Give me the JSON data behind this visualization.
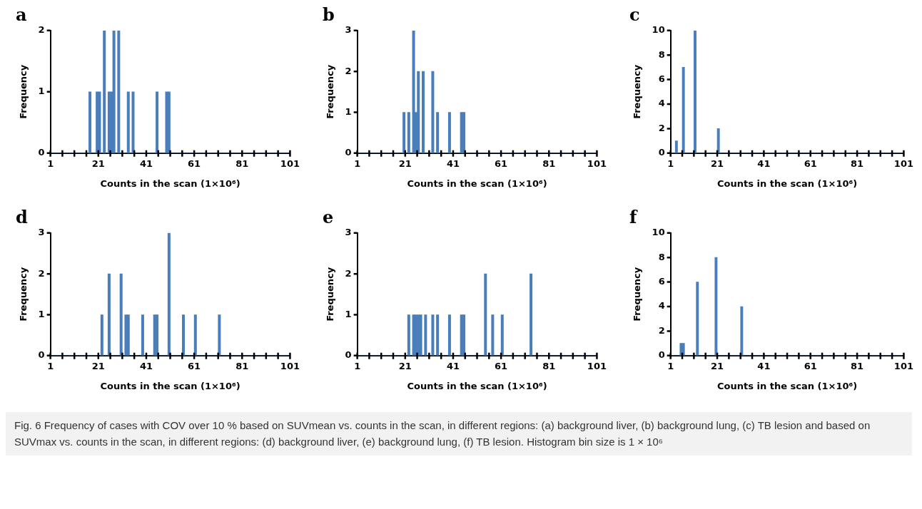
{
  "chart_data": [
    {
      "type": "histogram",
      "title": "a",
      "xlabel": "Counts in the scan (1×10⁶)",
      "ylabel": "Frequency",
      "color": "#4a7ebb",
      "bins": [
        1,
        2,
        3,
        4,
        5,
        6,
        7,
        8,
        9,
        10,
        11,
        12,
        13,
        14,
        15,
        16,
        17,
        18,
        19,
        20,
        21,
        22,
        23,
        24,
        25,
        26,
        27,
        28,
        29,
        30,
        31,
        32,
        33,
        34,
        35,
        36,
        37,
        38,
        39,
        40,
        41,
        42,
        43,
        44,
        45,
        46,
        47,
        48,
        49,
        50,
        51,
        52,
        53,
        54,
        55,
        56,
        57,
        58,
        59,
        60,
        61,
        62,
        63,
        64,
        65,
        66,
        67,
        68,
        69,
        70,
        71,
        72,
        73,
        74,
        75,
        76,
        77,
        78,
        79,
        80,
        81,
        82,
        83,
        84,
        85,
        86,
        87,
        88,
        89,
        90,
        91,
        92,
        93,
        94,
        95,
        96,
        97,
        98,
        99,
        100,
        101
      ],
      "values": [
        0,
        0,
        0,
        0,
        0,
        0,
        0,
        0,
        0,
        0,
        0,
        0,
        0,
        0,
        0,
        0,
        1,
        0,
        0,
        1,
        1,
        0,
        2,
        0,
        1,
        1,
        2,
        0,
        2,
        0,
        0,
        0,
        1,
        0,
        1,
        0,
        0,
        0,
        0,
        0,
        0,
        0,
        0,
        0,
        1,
        0,
        0,
        0,
        1,
        1,
        0,
        0,
        0,
        0,
        0,
        0,
        0,
        0,
        0,
        0,
        0,
        0,
        0,
        0,
        0,
        0,
        0,
        0,
        0,
        0,
        0,
        0,
        0,
        0,
        0,
        0,
        0,
        0,
        0,
        0,
        0,
        0,
        0,
        0,
        0,
        0,
        0,
        0,
        0,
        0,
        0,
        0,
        0,
        0,
        0,
        0,
        0,
        0,
        0,
        0
      ],
      "xlim": [
        1,
        101
      ],
      "xticks": [
        1,
        {
          "value": 6,
          "label": null
        },
        {
          "value": 11,
          "label": null
        },
        {
          "value": 16,
          "label": null
        },
        21,
        {
          "value": 26,
          "label": null
        },
        {
          "value": 31,
          "label": null
        },
        {
          "value": 36,
          "label": null
        },
        41,
        {
          "value": 46,
          "label": null
        },
        {
          "value": 51,
          "label": null
        },
        {
          "value": 56,
          "label": null
        },
        61,
        {
          "value": 66,
          "label": null
        },
        {
          "value": 71,
          "label": null
        },
        {
          "value": 76,
          "label": null
        },
        81,
        {
          "value": 86,
          "label": null
        },
        {
          "value": 91,
          "label": null
        },
        {
          "value": 96,
          "label": null
        },
        101
      ],
      "ylim": [
        0,
        2
      ],
      "yticks": [
        0,
        1,
        2
      ]
    },
    {
      "type": "histogram",
      "title": "b",
      "xlabel": "Counts in the scan (1×10⁶)",
      "ylabel": "Frequency",
      "color": "#4a7ebb",
      "bins": [
        1,
        2,
        3,
        4,
        5,
        6,
        7,
        8,
        9,
        10,
        11,
        12,
        13,
        14,
        15,
        16,
        17,
        18,
        19,
        20,
        21,
        22,
        23,
        24,
        25,
        26,
        27,
        28,
        29,
        30,
        31,
        32,
        33,
        34,
        35,
        36,
        37,
        38,
        39,
        40,
        41,
        42,
        43,
        44,
        45,
        46,
        47,
        48,
        49,
        50,
        51,
        52,
        53,
        54,
        55,
        56,
        57,
        58,
        59,
        60,
        61,
        62,
        63,
        64,
        65,
        66,
        67,
        68,
        69,
        70,
        71,
        72,
        73,
        74,
        75,
        76,
        77,
        78,
        79,
        80,
        81,
        82,
        83,
        84,
        85,
        86,
        87,
        88,
        89,
        90,
        91,
        92,
        93,
        94,
        95,
        96,
        97,
        98,
        99,
        100,
        101
      ],
      "values": [
        0,
        0,
        0,
        0,
        0,
        0,
        0,
        0,
        0,
        0,
        0,
        0,
        0,
        0,
        0,
        0,
        0,
        0,
        0,
        1,
        0,
        1,
        0,
        3,
        1,
        2,
        0,
        2,
        0,
        0,
        0,
        2,
        0,
        1,
        0,
        0,
        0,
        0,
        1,
        0,
        0,
        0,
        0,
        1,
        1,
        0,
        0,
        0,
        0,
        0,
        0,
        0,
        0,
        0,
        0,
        0,
        0,
        0,
        0,
        0,
        0,
        0,
        0,
        0,
        0,
        0,
        0,
        0,
        0,
        0,
        0,
        0,
        0,
        0,
        0,
        0,
        0,
        0,
        0,
        0,
        0,
        0,
        0,
        0,
        0,
        0,
        0,
        0,
        0,
        0,
        0,
        0,
        0,
        0,
        0,
        0,
        0,
        0,
        0,
        0
      ],
      "xlim": [
        1,
        101
      ],
      "xticks": [
        1,
        {
          "value": 6,
          "label": null
        },
        {
          "value": 11,
          "label": null
        },
        {
          "value": 16,
          "label": null
        },
        21,
        {
          "value": 26,
          "label": null
        },
        {
          "value": 31,
          "label": null
        },
        {
          "value": 36,
          "label": null
        },
        41,
        {
          "value": 46,
          "label": null
        },
        {
          "value": 51,
          "label": null
        },
        {
          "value": 56,
          "label": null
        },
        61,
        {
          "value": 66,
          "label": null
        },
        {
          "value": 71,
          "label": null
        },
        {
          "value": 76,
          "label": null
        },
        81,
        {
          "value": 86,
          "label": null
        },
        {
          "value": 91,
          "label": null
        },
        {
          "value": 96,
          "label": null
        },
        101
      ],
      "ylim": [
        0,
        3
      ],
      "yticks": [
        0,
        1,
        2,
        3
      ]
    },
    {
      "type": "histogram",
      "title": "c",
      "xlabel": "Counts in the scan (1×10⁶)",
      "ylabel": "Frequency",
      "color": "#4a7ebb",
      "bins": [
        1,
        2,
        3,
        4,
        5,
        6,
        7,
        8,
        9,
        10,
        11,
        12,
        13,
        14,
        15,
        16,
        17,
        18,
        19,
        20,
        21,
        22,
        23,
        24,
        25,
        26,
        27,
        28,
        29,
        30,
        31,
        32,
        33,
        34,
        35,
        36,
        37,
        38,
        39,
        40,
        41,
        42,
        43,
        44,
        45,
        46,
        47,
        48,
        49,
        50,
        51,
        52,
        53,
        54,
        55,
        56,
        57,
        58,
        59,
        60,
        61,
        62,
        63,
        64,
        65,
        66,
        67,
        68,
        69,
        70,
        71,
        72,
        73,
        74,
        75,
        76,
        77,
        78,
        79,
        80,
        81,
        82,
        83,
        84,
        85,
        86,
        87,
        88,
        89,
        90,
        91,
        92,
        93,
        94,
        95,
        96,
        97,
        98,
        99,
        100,
        101
      ],
      "values": [
        0,
        0,
        1,
        0,
        0,
        7,
        0,
        0,
        0,
        0,
        10,
        0,
        0,
        0,
        0,
        0,
        0,
        0,
        0,
        0,
        2,
        0,
        0,
        0,
        0,
        0,
        0,
        0,
        0,
        0,
        0,
        0,
        0,
        0,
        0,
        0,
        0,
        0,
        0,
        0,
        0,
        0,
        0,
        0,
        0,
        0,
        0,
        0,
        0,
        0,
        0,
        0,
        0,
        0,
        0,
        0,
        0,
        0,
        0,
        0,
        0,
        0,
        0,
        0,
        0,
        0,
        0,
        0,
        0,
        0,
        0,
        0,
        0,
        0,
        0,
        0,
        0,
        0,
        0,
        0,
        0,
        0,
        0,
        0,
        0,
        0,
        0,
        0,
        0,
        0,
        0,
        0,
        0,
        0,
        0,
        0,
        0,
        0,
        0,
        0
      ],
      "xlim": [
        1,
        101
      ],
      "xticks": [
        1,
        {
          "value": 6,
          "label": null
        },
        {
          "value": 11,
          "label": null
        },
        {
          "value": 16,
          "label": null
        },
        21,
        {
          "value": 26,
          "label": null
        },
        {
          "value": 31,
          "label": null
        },
        {
          "value": 36,
          "label": null
        },
        41,
        {
          "value": 46,
          "label": null
        },
        {
          "value": 51,
          "label": null
        },
        {
          "value": 56,
          "label": null
        },
        61,
        {
          "value": 66,
          "label": null
        },
        {
          "value": 71,
          "label": null
        },
        {
          "value": 76,
          "label": null
        },
        81,
        {
          "value": 86,
          "label": null
        },
        {
          "value": 91,
          "label": null
        },
        {
          "value": 96,
          "label": null
        },
        101
      ],
      "ylim": [
        0,
        10
      ],
      "yticks": [
        0,
        2,
        4,
        6,
        8,
        10
      ]
    },
    {
      "type": "histogram",
      "title": "d",
      "xlabel": "Counts in the scan (1×10⁶)",
      "ylabel": "Frequency",
      "color": "#4a7ebb",
      "bins": [
        1,
        2,
        3,
        4,
        5,
        6,
        7,
        8,
        9,
        10,
        11,
        12,
        13,
        14,
        15,
        16,
        17,
        18,
        19,
        20,
        21,
        22,
        23,
        24,
        25,
        26,
        27,
        28,
        29,
        30,
        31,
        32,
        33,
        34,
        35,
        36,
        37,
        38,
        39,
        40,
        41,
        42,
        43,
        44,
        45,
        46,
        47,
        48,
        49,
        50,
        51,
        52,
        53,
        54,
        55,
        56,
        57,
        58,
        59,
        60,
        61,
        62,
        63,
        64,
        65,
        66,
        67,
        68,
        69,
        70,
        71,
        72,
        73,
        74,
        75,
        76,
        77,
        78,
        79,
        80,
        81,
        82,
        83,
        84,
        85,
        86,
        87,
        88,
        89,
        90,
        91,
        92,
        93,
        94,
        95,
        96,
        97,
        98,
        99,
        100,
        101
      ],
      "values": [
        0,
        0,
        0,
        0,
        0,
        0,
        0,
        0,
        0,
        0,
        0,
        0,
        0,
        0,
        0,
        0,
        0,
        0,
        0,
        0,
        0,
        1,
        0,
        0,
        2,
        0,
        0,
        0,
        0,
        2,
        0,
        1,
        1,
        0,
        0,
        0,
        0,
        0,
        1,
        0,
        0,
        0,
        0,
        1,
        1,
        0,
        0,
        0,
        0,
        3,
        0,
        0,
        0,
        0,
        0,
        1,
        0,
        0,
        0,
        0,
        1,
        0,
        0,
        0,
        0,
        0,
        0,
        0,
        0,
        0,
        1,
        0,
        0,
        0,
        0,
        0,
        0,
        0,
        0,
        0,
        0,
        0,
        0,
        0,
        0,
        0,
        0,
        0,
        0,
        0,
        0,
        0,
        0,
        0,
        0,
        0,
        0,
        0,
        0,
        0
      ],
      "xlim": [
        1,
        101
      ],
      "xticks": [
        1,
        {
          "value": 6,
          "label": null
        },
        {
          "value": 11,
          "label": null
        },
        {
          "value": 16,
          "label": null
        },
        21,
        {
          "value": 26,
          "label": null
        },
        {
          "value": 31,
          "label": null
        },
        {
          "value": 36,
          "label": null
        },
        41,
        {
          "value": 46,
          "label": null
        },
        {
          "value": 51,
          "label": null
        },
        {
          "value": 56,
          "label": null
        },
        61,
        {
          "value": 66,
          "label": null
        },
        {
          "value": 71,
          "label": null
        },
        {
          "value": 76,
          "label": null
        },
        81,
        {
          "value": 86,
          "label": null
        },
        {
          "value": 91,
          "label": null
        },
        {
          "value": 96,
          "label": null
        },
        101
      ],
      "ylim": [
        0,
        3
      ],
      "yticks": [
        0,
        1,
        2,
        3
      ]
    },
    {
      "type": "histogram",
      "title": "e",
      "xlabel": "Counts in the scan (1×10⁶)",
      "ylabel": "Frequency",
      "color": "#4a7ebb",
      "bins": [
        1,
        2,
        3,
        4,
        5,
        6,
        7,
        8,
        9,
        10,
        11,
        12,
        13,
        14,
        15,
        16,
        17,
        18,
        19,
        20,
        21,
        22,
        23,
        24,
        25,
        26,
        27,
        28,
        29,
        30,
        31,
        32,
        33,
        34,
        35,
        36,
        37,
        38,
        39,
        40,
        41,
        42,
        43,
        44,
        45,
        46,
        47,
        48,
        49,
        50,
        51,
        52,
        53,
        54,
        55,
        56,
        57,
        58,
        59,
        60,
        61,
        62,
        63,
        64,
        65,
        66,
        67,
        68,
        69,
        70,
        71,
        72,
        73,
        74,
        75,
        76,
        77,
        78,
        79,
        80,
        81,
        82,
        83,
        84,
        85,
        86,
        87,
        88,
        89,
        90,
        91,
        92,
        93,
        94,
        95,
        96,
        97,
        98,
        99,
        100,
        101
      ],
      "values": [
        0,
        0,
        0,
        0,
        0,
        0,
        0,
        0,
        0,
        0,
        0,
        0,
        0,
        0,
        0,
        0,
        0,
        0,
        0,
        0,
        0,
        1,
        0,
        1,
        1,
        1,
        1,
        0,
        1,
        0,
        0,
        1,
        0,
        1,
        0,
        0,
        0,
        0,
        1,
        0,
        0,
        0,
        0,
        1,
        1,
        0,
        0,
        0,
        0,
        0,
        0,
        0,
        0,
        2,
        0,
        0,
        1,
        0,
        0,
        0,
        1,
        0,
        0,
        0,
        0,
        0,
        0,
        0,
        0,
        0,
        0,
        0,
        2,
        0,
        0,
        0,
        0,
        0,
        0,
        0,
        0,
        0,
        0,
        0,
        0,
        0,
        0,
        0,
        0,
        0,
        0,
        0,
        0,
        0,
        0,
        0,
        0,
        0,
        0,
        0
      ],
      "xlim": [
        1,
        101
      ],
      "xticks": [
        1,
        {
          "value": 6,
          "label": null
        },
        {
          "value": 11,
          "label": null
        },
        {
          "value": 16,
          "label": null
        },
        21,
        {
          "value": 26,
          "label": null
        },
        {
          "value": 31,
          "label": null
        },
        {
          "value": 36,
          "label": null
        },
        41,
        {
          "value": 46,
          "label": null
        },
        {
          "value": 51,
          "label": null
        },
        {
          "value": 56,
          "label": null
        },
        61,
        {
          "value": 66,
          "label": null
        },
        {
          "value": 71,
          "label": null
        },
        {
          "value": 76,
          "label": null
        },
        81,
        {
          "value": 86,
          "label": null
        },
        {
          "value": 91,
          "label": null
        },
        {
          "value": 96,
          "label": null
        },
        101
      ],
      "ylim": [
        0,
        3
      ],
      "yticks": [
        0,
        1,
        2,
        3
      ]
    },
    {
      "type": "histogram",
      "title": "f",
      "xlabel": "Counts in the scan (1×10⁶)",
      "ylabel": "Frequency",
      "color": "#4a7ebb",
      "bins": [
        1,
        2,
        3,
        4,
        5,
        6,
        7,
        8,
        9,
        10,
        11,
        12,
        13,
        14,
        15,
        16,
        17,
        18,
        19,
        20,
        21,
        22,
        23,
        24,
        25,
        26,
        27,
        28,
        29,
        30,
        31,
        32,
        33,
        34,
        35,
        36,
        37,
        38,
        39,
        40,
        41,
        42,
        43,
        44,
        45,
        46,
        47,
        48,
        49,
        50,
        51,
        52,
        53,
        54,
        55,
        56,
        57,
        58,
        59,
        60,
        61,
        62,
        63,
        64,
        65,
        66,
        67,
        68,
        69,
        70,
        71,
        72,
        73,
        74,
        75,
        76,
        77,
        78,
        79,
        80,
        81,
        82,
        83,
        84,
        85,
        86,
        87,
        88,
        89,
        90,
        91,
        92,
        93,
        94,
        95,
        96,
        97,
        98,
        99,
        100,
        101
      ],
      "values": [
        0,
        0,
        0,
        0,
        1,
        1,
        0,
        0,
        0,
        0,
        0,
        6,
        0,
        0,
        0,
        0,
        0,
        0,
        0,
        8,
        0,
        0,
        0,
        0,
        0,
        0,
        0,
        0,
        0,
        0,
        4,
        0,
        0,
        0,
        0,
        0,
        0,
        0,
        0,
        0,
        0,
        0,
        0,
        0,
        0,
        0,
        0,
        0,
        0,
        0,
        0,
        0,
        0,
        0,
        0,
        0,
        0,
        0,
        0,
        0,
        0,
        0,
        0,
        0,
        0,
        0,
        0,
        0,
        0,
        0,
        0,
        0,
        0,
        0,
        0,
        0,
        0,
        0,
        0,
        0,
        0,
        0,
        0,
        0,
        0,
        0,
        0,
        0,
        0,
        0,
        0,
        0,
        0,
        0,
        0,
        0,
        0,
        0,
        0,
        0
      ],
      "xlim": [
        1,
        101
      ],
      "xticks": [
        1,
        {
          "value": 6,
          "label": null
        },
        {
          "value": 11,
          "label": null
        },
        {
          "value": 16,
          "label": null
        },
        21,
        {
          "value": 26,
          "label": null
        },
        {
          "value": 31,
          "label": null
        },
        {
          "value": 36,
          "label": null
        },
        41,
        {
          "value": 46,
          "label": null
        },
        {
          "value": 51,
          "label": null
        },
        {
          "value": 56,
          "label": null
        },
        61,
        {
          "value": 66,
          "label": null
        },
        {
          "value": 71,
          "label": null
        },
        {
          "value": 76,
          "label": null
        },
        81,
        {
          "value": 86,
          "label": null
        },
        {
          "value": 91,
          "label": null
        },
        {
          "value": 96,
          "label": null
        },
        101
      ],
      "ylim": [
        0,
        10
      ],
      "yticks": [
        0,
        2,
        4,
        6,
        8,
        10
      ],
      "annotations": [
        "Fig. 6 Frequency of cases with COV over 10 % based on SUVmean vs. counts in the scan, in different regions: (a) background liver, (b) background lung, (c) TB lesion and based on SUVmax vs. counts in the scan, in different regions: (d) background liver, (e) background lung, (f) TB lesion. Histogram bin size is 1 × 10⁶"
      ]
    }
  ]
}
